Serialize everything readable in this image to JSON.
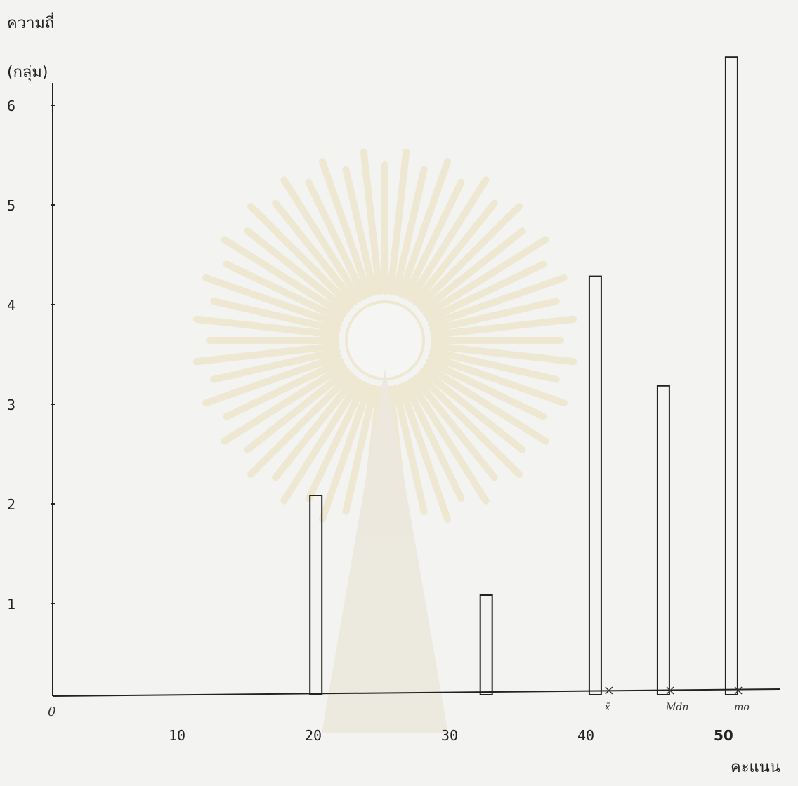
{
  "chart_data": {
    "type": "bar",
    "ylabel_line1": "ความถี่",
    "ylabel_line2": "(กลุ่ม)",
    "xlabel": "คะแนน",
    "origin_label": "0",
    "ylim": [
      0,
      6.5
    ],
    "xlim": [
      0,
      55
    ],
    "y_ticks": [
      1,
      2,
      3,
      4,
      5,
      6
    ],
    "x_ticks": [
      10,
      20,
      30,
      40,
      50
    ],
    "bars": [
      {
        "x": 20.5,
        "value": 2
      },
      {
        "x": 33,
        "value": 1
      },
      {
        "x": 41,
        "value": 4.2
      },
      {
        "x": 46,
        "value": 3.1
      },
      {
        "x": 51,
        "value": 6.4
      }
    ],
    "markers": [
      {
        "x": 42,
        "label": "x̄"
      },
      {
        "x": 46.5,
        "label": "Mdn"
      },
      {
        "x": 51.5,
        "label": "mo"
      }
    ]
  }
}
